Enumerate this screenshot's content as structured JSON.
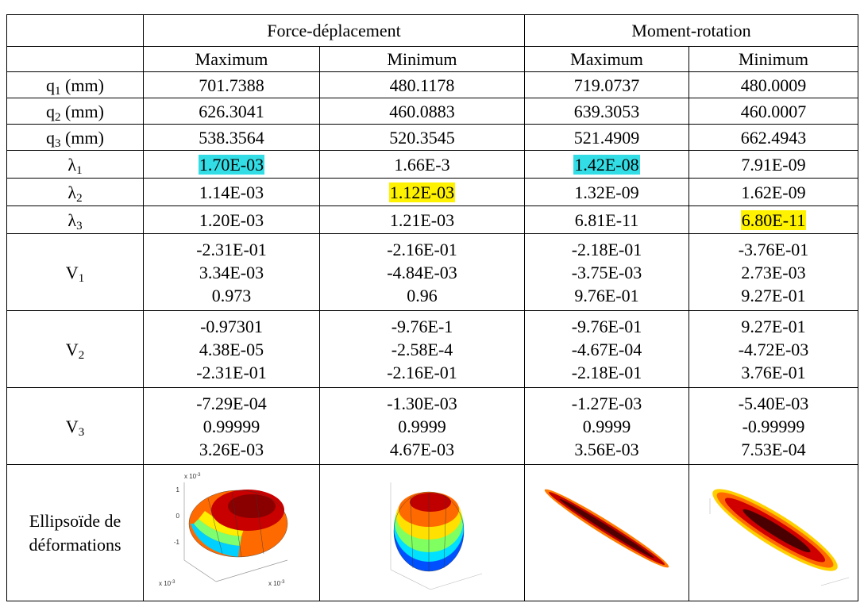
{
  "table": {
    "group_headers": [
      "Force-déplacement",
      "Moment-rotation"
    ],
    "sub_headers": [
      "Maximum",
      "Minimum",
      "Maximum",
      "Minimum"
    ],
    "rows": [
      {
        "symbol": "q",
        "sub": "1",
        "suffix": " (mm)",
        "cells": [
          "701.7388",
          "480.1178",
          "719.0737",
          "480.0009"
        ]
      },
      {
        "symbol": "q",
        "sub": "2",
        "suffix": " (mm)",
        "cells": [
          "626.3041",
          "460.0883",
          "639.3053",
          "460.0007"
        ]
      },
      {
        "symbol": "q",
        "sub": "3",
        "suffix": " (mm)",
        "cells": [
          "538.3564",
          "520.3545",
          "521.4909",
          "662.4943"
        ]
      },
      {
        "symbol": "λ",
        "sub": "1",
        "cells": [
          "1.70E-03",
          "1.66E-3",
          "1.42E-08",
          "7.91E-09"
        ]
      },
      {
        "symbol": "λ",
        "sub": "2",
        "cells": [
          "1.14E-03",
          "1.12E-03",
          "1.32E-09",
          "1.62E-09"
        ]
      },
      {
        "symbol": "λ",
        "sub": "3",
        "cells": [
          "1.20E-03",
          "1.21E-03",
          "6.81E-11",
          "6.80E-11"
        ]
      },
      {
        "symbol": "V",
        "sub": "1",
        "cells": [
          [
            "-2.31E-01",
            "3.34E-03",
            "0.973"
          ],
          [
            "-2.16E-01",
            "-4.84E-03",
            "0.96"
          ],
          [
            "-2.18E-01",
            "-3.75E-03",
            "9.76E-01"
          ],
          [
            "-3.76E-01",
            "2.73E-03",
            "9.27E-01"
          ]
        ]
      },
      {
        "symbol": "V",
        "sub": "2",
        "cells": [
          [
            "-0.97301",
            "4.38E-05",
            "-2.31E-01"
          ],
          [
            "-9.76E-1",
            "-2.58E-4",
            "-2.16E-01"
          ],
          [
            "-9.76E-01",
            "-4.67E-04",
            "-2.18E-01"
          ],
          [
            "9.27E-01",
            "-4.72E-03",
            "3.76E-01"
          ]
        ]
      },
      {
        "symbol": "V",
        "sub": "3",
        "cells": [
          [
            "-7.29E-04",
            "0.99999",
            "3.26E-03"
          ],
          [
            "-1.30E-03",
            "0.9999",
            "4.67E-03"
          ],
          [
            "-1.27E-03",
            "0.9999",
            "3.56E-03"
          ],
          [
            "-5.40E-03",
            "-0.99999",
            "7.53E-04"
          ]
        ]
      }
    ],
    "highlights": [
      {
        "row": 3,
        "col": 0,
        "color": "#33dde6"
      },
      {
        "row": 3,
        "col": 2,
        "color": "#33dde6"
      },
      {
        "row": 4,
        "col": 1,
        "color": "#fff200"
      },
      {
        "row": 5,
        "col": 3,
        "color": "#fff200"
      }
    ],
    "last_row": {
      "label": "Ellipsoïde de déformations",
      "scale": "x 10",
      "scale_exp": "-3",
      "axis_ticks": [
        "1",
        "0",
        "-1"
      ]
    }
  }
}
